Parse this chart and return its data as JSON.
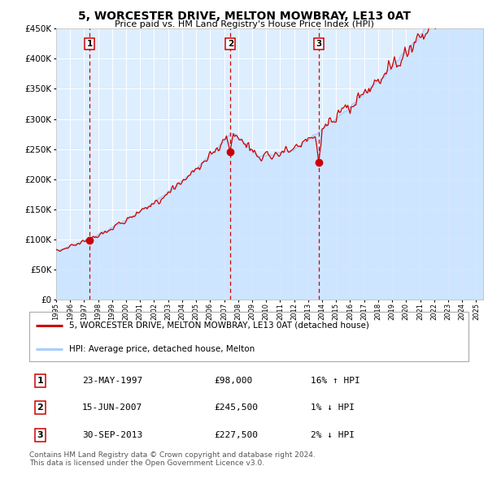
{
  "title": "5, WORCESTER DRIVE, MELTON MOWBRAY, LE13 0AT",
  "subtitle": "Price paid vs. HM Land Registry's House Price Index (HPI)",
  "ytick_values": [
    0,
    50000,
    100000,
    150000,
    200000,
    250000,
    300000,
    350000,
    400000,
    450000
  ],
  "ylim": [
    0,
    450000
  ],
  "xlim_start": 1995.0,
  "xlim_end": 2025.5,
  "bg_color": "#ddeeff",
  "grid_color": "#ffffff",
  "sale_color": "#cc0000",
  "hpi_line_color": "#aaccff",
  "hpi_fill_color": "#cce4ff",
  "dashed_line_color": "#cc0000",
  "marker_color": "#cc0000",
  "legend_sale_label": "5, WORCESTER DRIVE, MELTON MOWBRAY, LE13 0AT (detached house)",
  "legend_hpi_label": "HPI: Average price, detached house, Melton",
  "transactions": [
    {
      "id": 1,
      "date": "23-MAY-1997",
      "price": 98000,
      "year": 1997.38,
      "hpi_diff": "16% ↑ HPI"
    },
    {
      "id": 2,
      "date": "15-JUN-2007",
      "price": 245500,
      "year": 2007.45,
      "hpi_diff": "1% ↓ HPI"
    },
    {
      "id": 3,
      "date": "30-SEP-2013",
      "price": 227500,
      "year": 2013.75,
      "hpi_diff": "2% ↓ HPI"
    }
  ],
  "copyright_text": "Contains HM Land Registry data © Crown copyright and database right 2024.\nThis data is licensed under the Open Government Licence v3.0.",
  "xtick_years": [
    1995,
    1996,
    1997,
    1998,
    1999,
    2000,
    2001,
    2002,
    2003,
    2004,
    2005,
    2006,
    2007,
    2008,
    2009,
    2010,
    2011,
    2012,
    2013,
    2014,
    2015,
    2016,
    2017,
    2018,
    2019,
    2020,
    2021,
    2022,
    2023,
    2024,
    2025
  ]
}
